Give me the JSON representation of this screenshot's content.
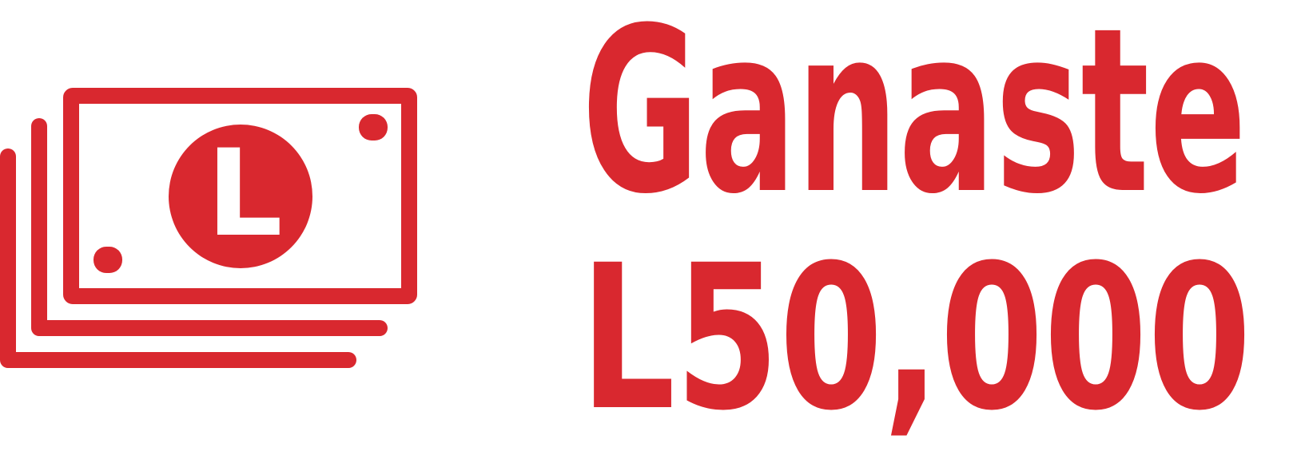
{
  "icon": {
    "symbol": "L"
  },
  "headline": "Ganaste",
  "amount": "L50,000"
}
